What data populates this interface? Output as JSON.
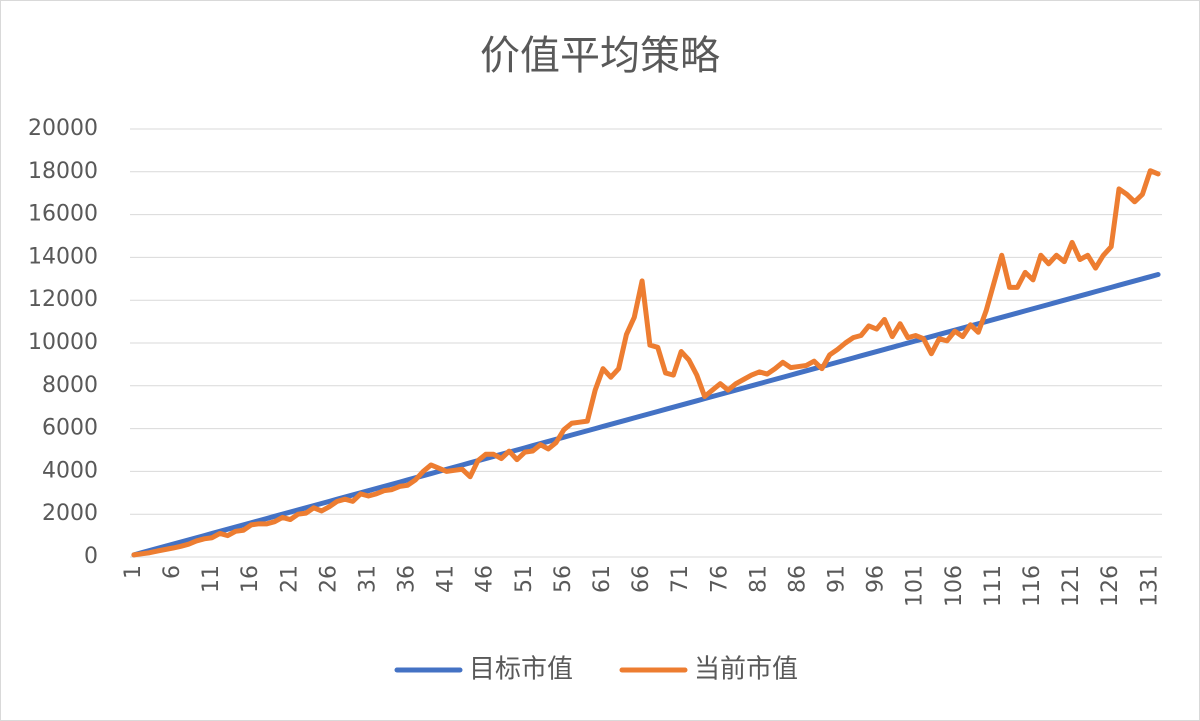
{
  "chart_data": {
    "type": "line",
    "title": "价值平均策略",
    "categories": [
      "1",
      null,
      null,
      null,
      null,
      "6",
      null,
      null,
      null,
      null,
      "11",
      null,
      null,
      null,
      null,
      "16",
      null,
      null,
      null,
      null,
      "21",
      null,
      null,
      null,
      null,
      "26",
      null,
      null,
      null,
      null,
      "31",
      null,
      null,
      null,
      null,
      "36",
      null,
      null,
      null,
      null,
      "41",
      null,
      null,
      null,
      null,
      "46",
      null,
      null,
      null,
      null,
      "51",
      null,
      null,
      null,
      null,
      "56",
      null,
      null,
      null,
      null,
      "61",
      null,
      null,
      null,
      null,
      "66",
      null,
      null,
      null,
      null,
      "71",
      null,
      null,
      null,
      null,
      "76",
      null,
      null,
      null,
      null,
      "81",
      null,
      null,
      null,
      null,
      "86",
      null,
      null,
      null,
      null,
      "91",
      null,
      null,
      null,
      null,
      "96",
      null,
      null,
      null,
      null,
      "101",
      null,
      null,
      null,
      null,
      "106",
      null,
      null,
      null,
      null,
      "111",
      null,
      null,
      null,
      null,
      "116",
      null,
      null,
      null,
      null,
      "121",
      null,
      null,
      null,
      null,
      "126",
      null,
      null,
      null,
      null,
      "131",
      null
    ],
    "series": [
      {
        "name": "目标市值",
        "color": "#4472c4",
        "values": [
          100,
          200,
          300,
          400,
          500,
          600,
          700,
          800,
          900,
          1000,
          1100,
          1200,
          1300,
          1400,
          1500,
          1600,
          1700,
          1800,
          1900,
          2000,
          2100,
          2200,
          2300,
          2400,
          2500,
          2600,
          2700,
          2800,
          2900,
          3000,
          3100,
          3200,
          3300,
          3400,
          3500,
          3600,
          3700,
          3800,
          3900,
          4000,
          4100,
          4200,
          4300,
          4400,
          4500,
          4600,
          4700,
          4800,
          4900,
          5000,
          5100,
          5200,
          5300,
          5400,
          5500,
          5600,
          5700,
          5800,
          5900,
          6000,
          6100,
          6200,
          6300,
          6400,
          6500,
          6600,
          6700,
          6800,
          6900,
          7000,
          7100,
          7200,
          7300,
          7400,
          7500,
          7600,
          7700,
          7800,
          7900,
          8000,
          8100,
          8200,
          8300,
          8400,
          8500,
          8600,
          8700,
          8800,
          8900,
          9000,
          9100,
          9200,
          9300,
          9400,
          9500,
          9600,
          9700,
          9800,
          9900,
          10000,
          10100,
          10200,
          10300,
          10400,
          10500,
          10600,
          10700,
          10800,
          10900,
          11000,
          11100,
          11200,
          11300,
          11400,
          11500,
          11600,
          11700,
          11800,
          11900,
          12000,
          12100,
          12200,
          12300,
          12400,
          12500,
          12600,
          12700,
          12800,
          12900,
          13000,
          13100,
          13200
        ]
      },
      {
        "name": "当前市值",
        "color": "#ed7d31",
        "values": [
          100,
          150,
          200,
          280,
          350,
          420,
          500,
          600,
          750,
          850,
          900,
          1100,
          1000,
          1200,
          1250,
          1500,
          1550,
          1550,
          1650,
          1850,
          1750,
          2000,
          2050,
          2300,
          2150,
          2350,
          2600,
          2700,
          2600,
          2950,
          2850,
          2950,
          3100,
          3150,
          3300,
          3350,
          3600,
          4000,
          4300,
          4150,
          4000,
          4050,
          4100,
          3750,
          4500,
          4800,
          4800,
          4600,
          4950,
          4550,
          4900,
          4950,
          5250,
          5050,
          5350,
          5950,
          6250,
          6300,
          6350,
          7800,
          8800,
          8400,
          8800,
          10400,
          11200,
          12900,
          9900,
          9800,
          8600,
          8500,
          9600,
          9200,
          8500,
          7500,
          7800,
          8100,
          7800,
          8100,
          8300,
          8500,
          8650,
          8550,
          8800,
          9100,
          8850,
          8900,
          8950,
          9150,
          8800,
          9450,
          9700,
          10000,
          10250,
          10350,
          10800,
          10650,
          11100,
          10300,
          10900,
          10250,
          10350,
          10200,
          9500,
          10200,
          10100,
          10550,
          10300,
          10850,
          10500,
          11500,
          12800,
          14100,
          12600,
          12600,
          13300,
          12950,
          14100,
          13700,
          14100,
          13800,
          14700,
          13900,
          14100,
          13500,
          14100,
          14500,
          17200,
          16950,
          16600,
          16950,
          18050,
          17900
        ]
      }
    ],
    "ylim": [
      0,
      20000
    ],
    "yticks": [
      0,
      2000,
      4000,
      6000,
      8000,
      10000,
      12000,
      14000,
      16000,
      18000,
      20000
    ],
    "grid": true,
    "legend": "bottom"
  }
}
